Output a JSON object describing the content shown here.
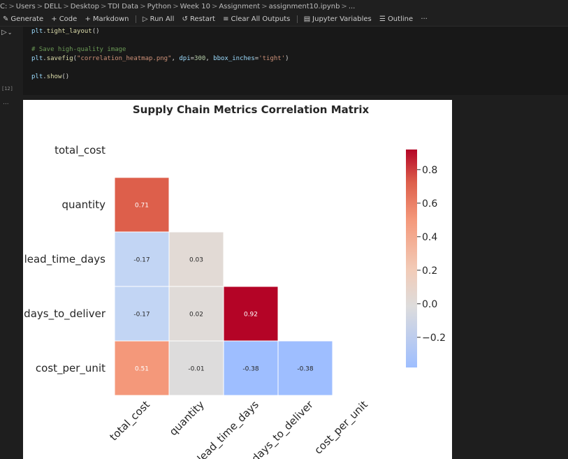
{
  "breadcrumb": [
    "C:",
    "Users",
    "DELL",
    "Desktop",
    "TDI Data",
    "Python",
    "Week 10",
    "Assignment",
    "assignment10.ipynb",
    "..."
  ],
  "toolbar": {
    "generate": "Generate",
    "code": "Code",
    "markdown": "Markdown",
    "run_all": "Run All",
    "restart": "Restart",
    "clear_outputs": "Clear All Outputs",
    "variables": "Jupyter Variables",
    "outline": "Outline",
    "more": "···"
  },
  "cell": {
    "exec_count": "[12]",
    "output_marker": "...",
    "code": [
      "plt.tight_layout()",
      "",
      "# Save high-quality image",
      "plt.savefig(\"correlation_heatmap.png\", dpi=300, bbox_inches='tight')",
      "",
      "plt.show()"
    ]
  },
  "chart_data": {
    "type": "heatmap",
    "title": "Supply Chain Metrics Correlation Matrix",
    "labels": [
      "total_cost",
      "quantity",
      "lead_time_days",
      "days_to_deliver",
      "cost_per_unit"
    ],
    "x_tick_labels": [
      "total_cost",
      "quantity",
      "lead_time_days",
      "days_to_deliver",
      "cost_per_unit"
    ],
    "y_tick_labels": [
      "total_cost",
      "quantity",
      "lead_time_days",
      "days_to_deliver",
      "cost_per_unit"
    ],
    "mask": "upper triangle incl. diagonal",
    "cells": [
      {
        "row": "quantity",
        "col": "total_cost",
        "value": 0.71,
        "color": "#dd5f4b"
      },
      {
        "row": "lead_time_days",
        "col": "total_cost",
        "value": -0.17,
        "color": "#c2d5f4"
      },
      {
        "row": "lead_time_days",
        "col": "quantity",
        "value": 0.03,
        "color": "#e2dad5"
      },
      {
        "row": "days_to_deliver",
        "col": "total_cost",
        "value": -0.17,
        "color": "#c2d5f4"
      },
      {
        "row": "days_to_deliver",
        "col": "quantity",
        "value": 0.02,
        "color": "#e0dbd8"
      },
      {
        "row": "days_to_deliver",
        "col": "lead_time_days",
        "value": 0.92,
        "color": "#b40426"
      },
      {
        "row": "cost_per_unit",
        "col": "total_cost",
        "value": 0.51,
        "color": "#f4987a"
      },
      {
        "row": "cost_per_unit",
        "col": "quantity",
        "value": -0.01,
        "color": "#dddcdc"
      },
      {
        "row": "cost_per_unit",
        "col": "lead_time_days",
        "value": -0.38,
        "color": "#9ebeff"
      },
      {
        "row": "cost_per_unit",
        "col": "days_to_deliver",
        "value": -0.38,
        "color": "#9ebeff"
      }
    ],
    "colorbar": {
      "cmap": "coolwarm",
      "range": [
        -0.38,
        0.92
      ],
      "ticks": [
        -0.2,
        0.0,
        0.2,
        0.4,
        0.6,
        0.8
      ],
      "tick_labels": [
        "−0.2",
        "0.0",
        "0.2",
        "0.4",
        "0.6",
        "0.8"
      ]
    },
    "cell_border_color": "#ffffff"
  }
}
